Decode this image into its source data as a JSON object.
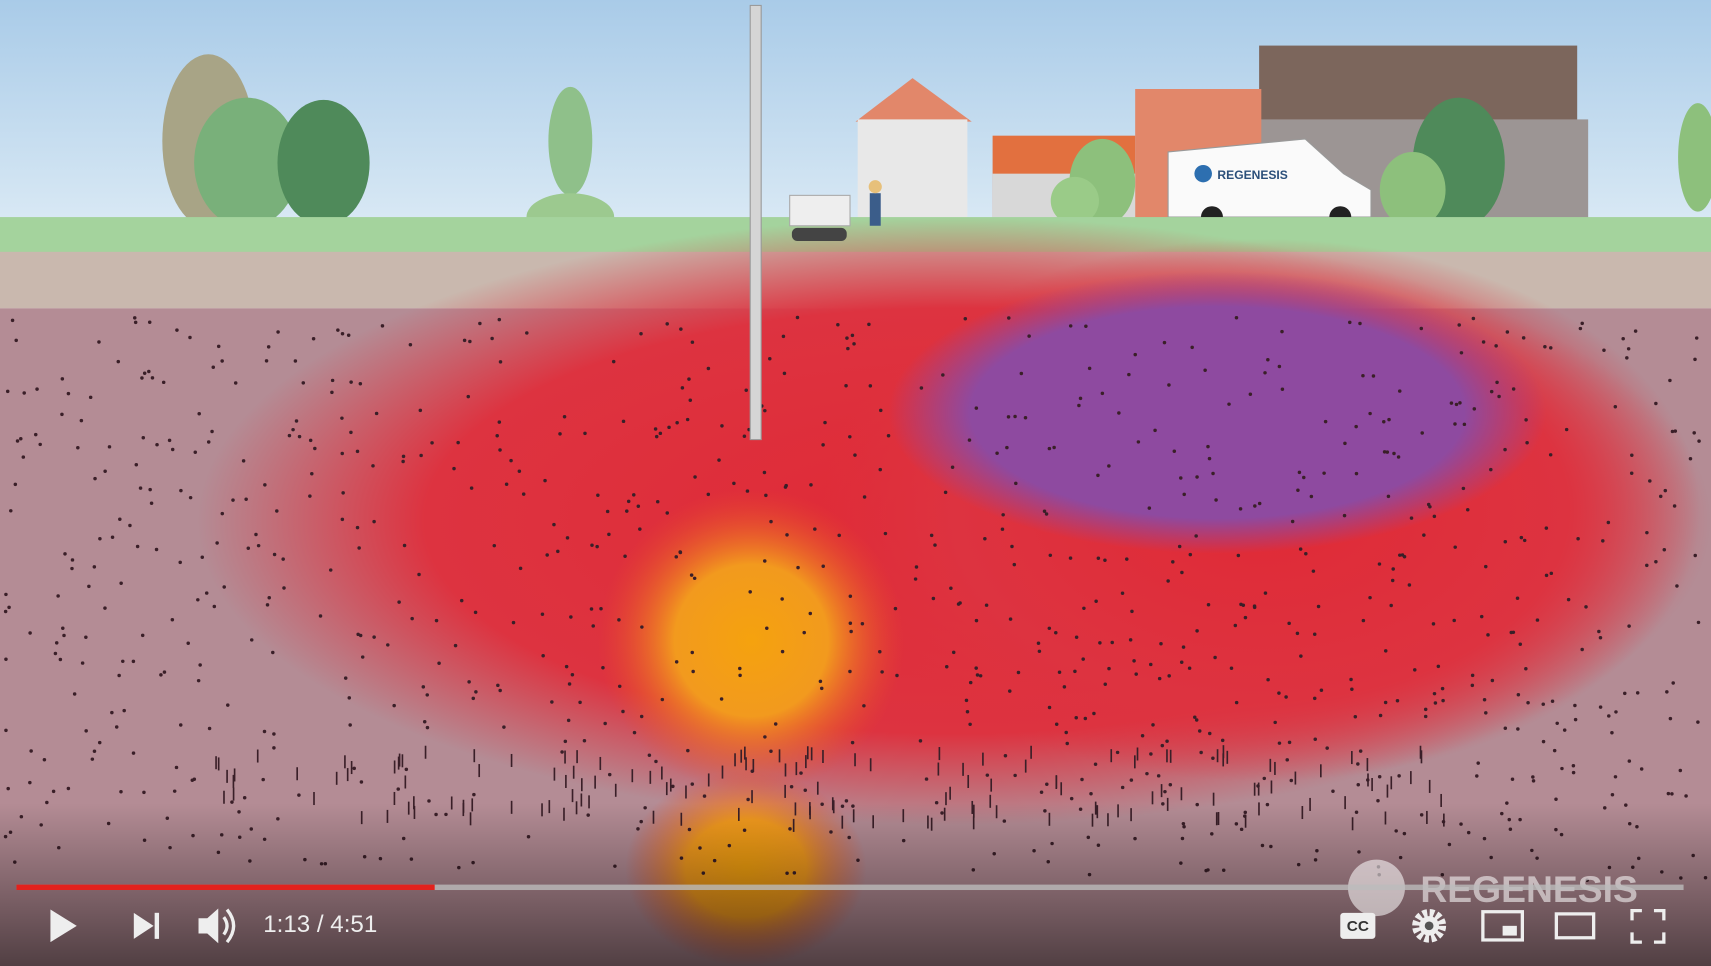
{
  "video": {
    "van_logo": "REGENESIS",
    "watermark": "REGENESIS",
    "time_display": "1:13 / 4:51",
    "captions_button": "CC"
  }
}
